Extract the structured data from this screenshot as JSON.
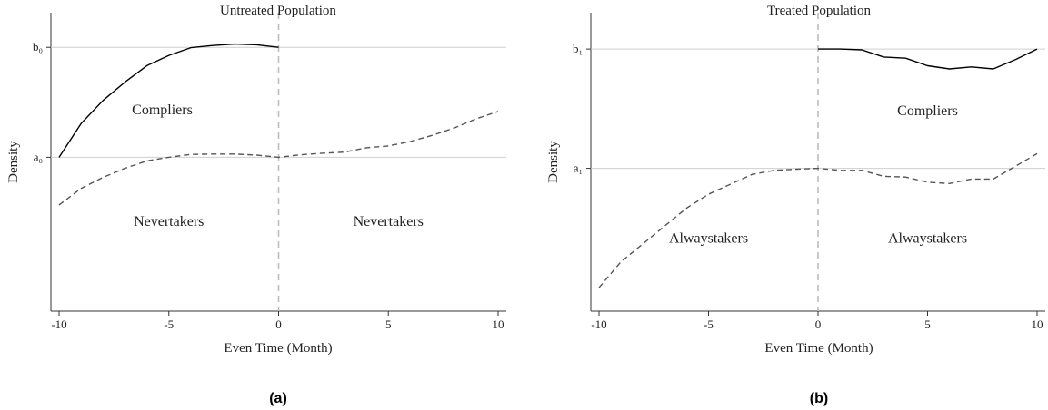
{
  "chart_data": [
    {
      "type": "line",
      "caption": "(a)",
      "title": "Untreated Population",
      "xlabel": "Even Time (Month)",
      "ylabel": "Density",
      "xlim": [
        -10,
        10
      ],
      "ylim": [
        -4.1,
        3.55
      ],
      "xticks": [
        -10,
        -5,
        0,
        5,
        10
      ],
      "yticks": [
        {
          "value": 0,
          "label": "a₀"
        },
        {
          "value": 3.0,
          "label": "b₀"
        }
      ],
      "hlines": [
        0,
        3.0
      ],
      "vline": 0,
      "series": [
        {
          "style": "solid",
          "x": [
            -10,
            -9,
            -8,
            -7,
            -6,
            -5,
            -4,
            -3,
            -2,
            -1,
            0
          ],
          "y": [
            0.0,
            0.92,
            1.55,
            2.05,
            2.5,
            2.78,
            2.99,
            3.05,
            3.09,
            3.07,
            3.0
          ]
        },
        {
          "style": "dashed",
          "x": [
            -10,
            -9,
            -8,
            -7,
            -6,
            -5,
            -4,
            -3,
            -2,
            -1,
            0,
            1,
            2,
            3,
            4,
            5,
            6,
            7,
            8,
            9,
            10
          ],
          "y": [
            -1.3,
            -0.85,
            -0.55,
            -0.3,
            -0.1,
            0.0,
            0.08,
            0.09,
            0.09,
            0.06,
            0.0,
            0.07,
            0.11,
            0.14,
            0.26,
            0.31,
            0.43,
            0.6,
            0.8,
            1.05,
            1.25
          ]
        }
      ],
      "annotations": [
        {
          "text": "Compliers",
          "x": -5.3,
          "y": 1.3
        },
        {
          "text": "Nevertakers",
          "x": -5.0,
          "y": -1.75
        },
        {
          "text": "Nevertakers",
          "x": 5.0,
          "y": -1.75
        }
      ]
    },
    {
      "type": "line",
      "caption": "(b)",
      "title": "Treated Population",
      "xlabel": "Even Time (Month)",
      "ylabel": "Density",
      "xlim": [
        -10,
        10
      ],
      "ylim": [
        -3.5,
        3.55
      ],
      "xticks": [
        -10,
        -5,
        0,
        5,
        10
      ],
      "yticks": [
        {
          "value": 0,
          "label": "a₁"
        },
        {
          "value": 3.0,
          "label": "b₁"
        }
      ],
      "hlines": [
        0,
        3.0
      ],
      "vline": 0,
      "series": [
        {
          "style": "solid",
          "x": [
            0,
            1,
            2,
            3,
            4,
            5,
            6,
            7,
            8,
            9,
            10
          ],
          "y": [
            3.0,
            3.0,
            2.98,
            2.8,
            2.77,
            2.58,
            2.5,
            2.55,
            2.5,
            2.73,
            3.0
          ]
        },
        {
          "style": "dashed",
          "x": [
            -10,
            -9,
            -8,
            -7,
            -6,
            -5,
            -4,
            -3,
            -2,
            -1,
            0,
            1,
            2,
            3,
            4,
            5,
            6,
            7,
            8,
            9,
            10
          ],
          "y": [
            -3.0,
            -2.35,
            -1.9,
            -1.45,
            -1.0,
            -0.65,
            -0.4,
            -0.15,
            -0.05,
            -0.02,
            0.0,
            -0.05,
            -0.05,
            -0.2,
            -0.22,
            -0.35,
            -0.38,
            -0.27,
            -0.27,
            0.05,
            0.37
          ]
        }
      ],
      "annotations": [
        {
          "text": "Compliers",
          "x": 5.0,
          "y": 1.45
        },
        {
          "text": "Alwaystakers",
          "x": -5.0,
          "y": -1.75
        },
        {
          "text": "Alwaystakers",
          "x": 5.0,
          "y": -1.75
        }
      ]
    }
  ]
}
